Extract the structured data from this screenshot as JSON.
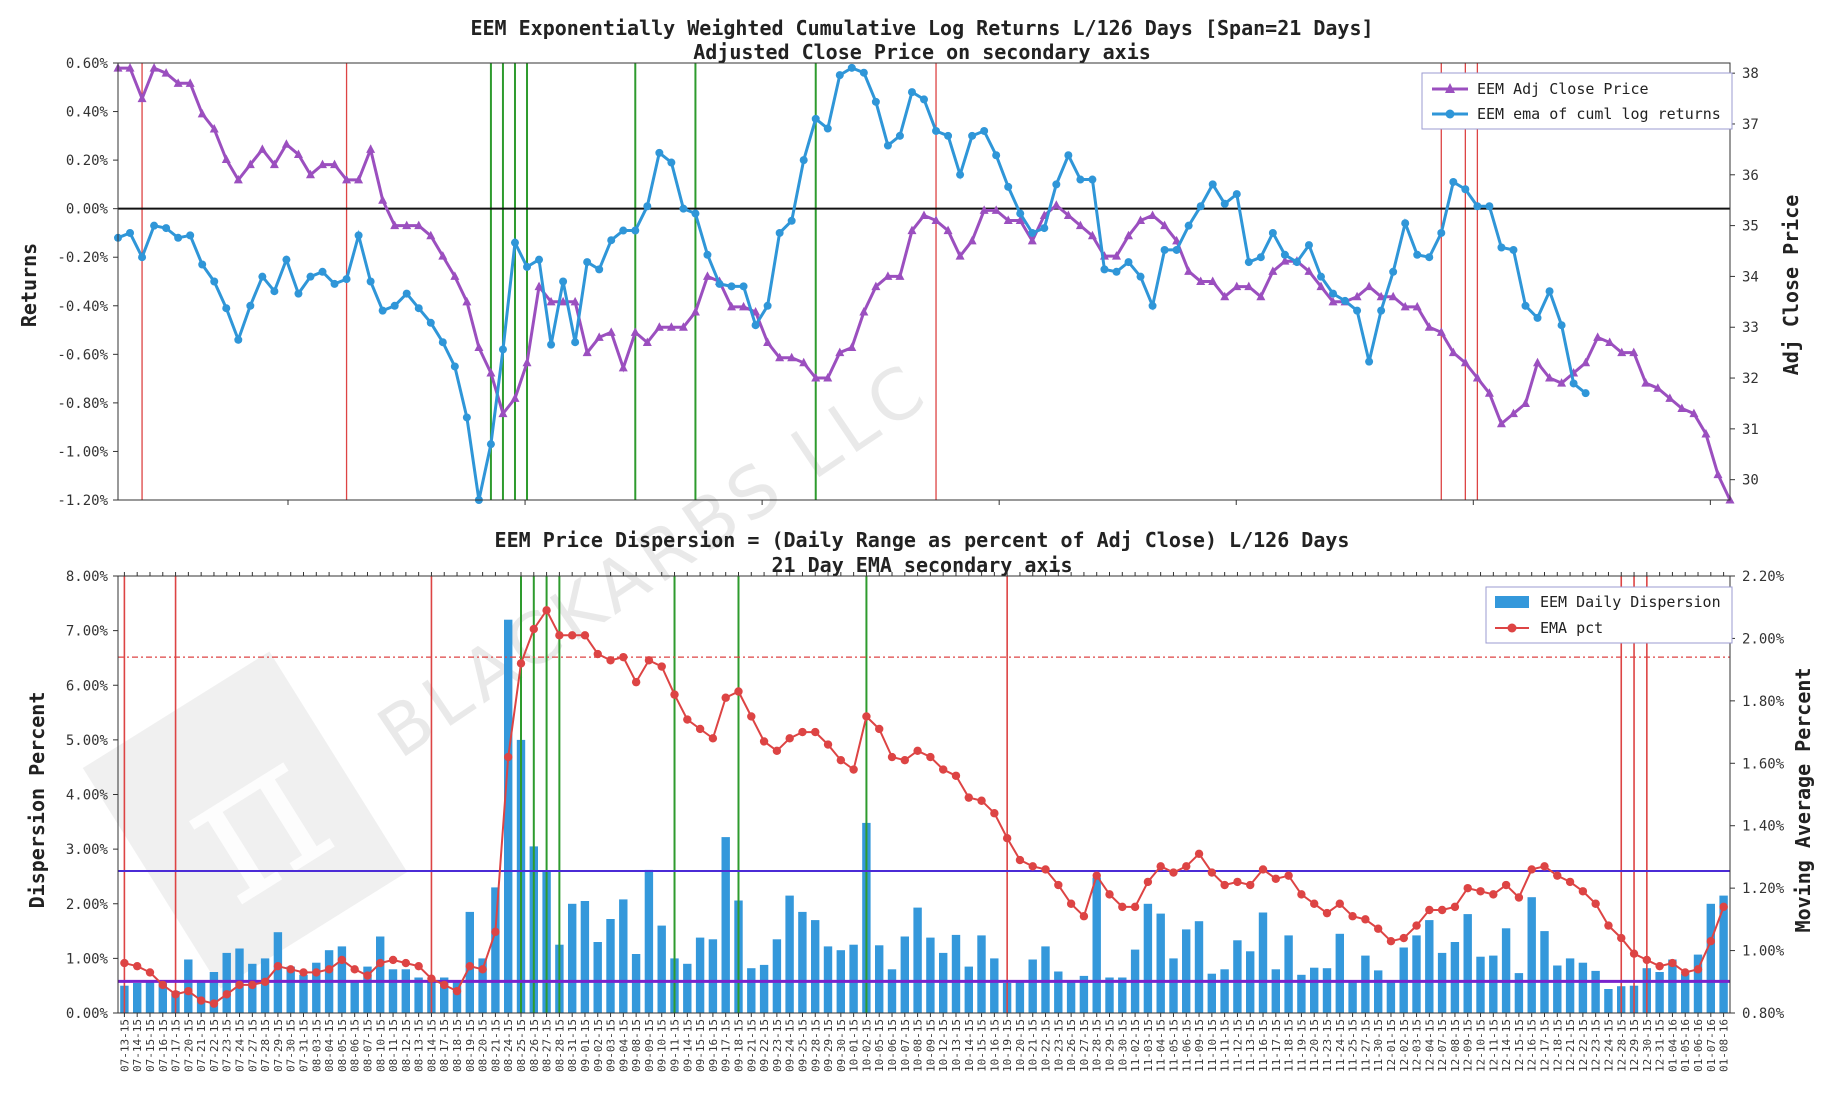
{
  "colors": {
    "purple": "#9b4fbf",
    "blue": "#2f96d8",
    "red": "#dd4444",
    "green": "#2e9b2e",
    "bar": "#3498db",
    "indigo": "#4b2bd6"
  },
  "watermark": {
    "text": "BLACKARBS LLC"
  },
  "chart_data": [
    {
      "type": "line",
      "title": "EEM Exponentially Weighted Cumulative Log Returns L/126 Days [Span=21 Days]",
      "subtitle": "Adjusted Close Price on secondary axis",
      "ylabel": "Returns",
      "y2label": "Adj Close Price",
      "ylim": [
        -1.2,
        0.6
      ],
      "y2lim": [
        29.6,
        38.2
      ],
      "yticks": [
        "0.60%",
        "0.40%",
        "0.20%",
        "0.00%",
        "-0.20%",
        "-0.40%",
        "-0.60%",
        "-0.80%",
        "-1.00%",
        "-1.20%"
      ],
      "y2ticks": [
        "38",
        "37",
        "36",
        "35",
        "34",
        "33",
        "32",
        "31",
        "30"
      ],
      "series": [
        {
          "name": "EEM Adj Close Price",
          "axis": "right",
          "marker": "triangle",
          "values": [
            38.1,
            38.1,
            37.5,
            38.1,
            38.0,
            37.8,
            37.8,
            37.2,
            36.9,
            36.3,
            35.9,
            36.2,
            36.5,
            36.2,
            36.6,
            36.4,
            36.0,
            36.2,
            36.2,
            35.9,
            35.9,
            36.5,
            35.5,
            35.0,
            35.0,
            35.0,
            34.8,
            34.4,
            34.0,
            33.5,
            32.6,
            32.1,
            31.3,
            31.6,
            32.3,
            33.8,
            33.5,
            33.5,
            33.5,
            32.5,
            32.8,
            32.9,
            32.2,
            32.9,
            32.7,
            33.0,
            33.0,
            33.0,
            33.3,
            34.0,
            33.9,
            33.4,
            33.4,
            33.3,
            32.7,
            32.4,
            32.4,
            32.3,
            32.0,
            32.0,
            32.5,
            32.6,
            33.3,
            33.8,
            34.0,
            34.0,
            34.9,
            35.2,
            35.1,
            34.9,
            34.4,
            34.7,
            35.3,
            35.3,
            35.1,
            35.1,
            34.7,
            35.2,
            35.4,
            35.2,
            35.0,
            34.8,
            34.4,
            34.4,
            34.8,
            35.1,
            35.2,
            35.0,
            34.7,
            34.1,
            33.9,
            33.9,
            33.6,
            33.8,
            33.8,
            33.6,
            34.1,
            34.3,
            34.3,
            34.1,
            33.8,
            33.5,
            33.5,
            33.6,
            33.8,
            33.6,
            33.6,
            33.4,
            33.4,
            33.0,
            32.9,
            32.5,
            32.3,
            32.0,
            31.7,
            31.1,
            31.3,
            31.5,
            32.3,
            32.0,
            31.9,
            32.1,
            32.3,
            32.8,
            32.7,
            32.5,
            32.5,
            31.9,
            31.8,
            31.6,
            31.4,
            31.3,
            30.9,
            30.1,
            29.6
          ]
        },
        {
          "name": "EEM ema of cuml log returns",
          "axis": "left",
          "marker": "circle",
          "values": [
            -0.12,
            -0.1,
            -0.2,
            -0.07,
            -0.08,
            -0.12,
            -0.11,
            -0.23,
            -0.3,
            -0.41,
            -0.54,
            -0.4,
            -0.28,
            -0.34,
            -0.21,
            -0.35,
            -0.28,
            -0.26,
            -0.31,
            -0.29,
            -0.11,
            -0.3,
            -0.42,
            -0.4,
            -0.35,
            -0.41,
            -0.47,
            -0.55,
            -0.65,
            -0.86,
            -1.2,
            -0.97,
            -0.58,
            -0.14,
            -0.24,
            -0.21,
            -0.56,
            -0.3,
            -0.55,
            -0.22,
            -0.25,
            -0.13,
            -0.09,
            -0.09,
            0.01,
            0.23,
            0.19,
            0.0,
            -0.02,
            -0.19,
            -0.31,
            -0.32,
            -0.32,
            -0.48,
            -0.4,
            -0.1,
            -0.05,
            0.2,
            0.37,
            0.33,
            0.55,
            0.58,
            0.56,
            0.44,
            0.26,
            0.3,
            0.48,
            0.45,
            0.32,
            0.3,
            0.14,
            0.3,
            0.32,
            0.22,
            0.09,
            -0.02,
            -0.1,
            -0.08,
            0.1,
            0.22,
            0.12,
            0.12,
            -0.25,
            -0.26,
            -0.22,
            -0.28,
            -0.4,
            -0.17,
            -0.17,
            -0.07,
            0.01,
            0.1,
            0.02,
            0.06,
            -0.22,
            -0.2,
            -0.1,
            -0.19,
            -0.22,
            -0.15,
            -0.28,
            -0.35,
            -0.38,
            -0.42,
            -0.63,
            -0.42,
            -0.26,
            -0.06,
            -0.19,
            -0.2,
            -0.1,
            0.11,
            0.08,
            0.01,
            0.01,
            -0.16,
            -0.17,
            -0.4,
            -0.45,
            -0.34,
            -0.48,
            -0.72,
            -0.76
          ]
        }
      ],
      "green_vlines": [
        31,
        32,
        33,
        34,
        43,
        48,
        58
      ],
      "red_vlines": [
        2,
        19,
        68,
        110,
        112,
        113
      ],
      "hline": 0.0
    },
    {
      "type": "bar",
      "title": "EEM Price Dispersion = (Daily Range as percent of Adj Close) L/126 Days",
      "subtitle": "21 Day EMA secondary axis",
      "ylabel": "Dispersion Percent",
      "y2label": "Moving Average Percent",
      "ylim": [
        0,
        8
      ],
      "y2lim": [
        0.8,
        2.2
      ],
      "yticks": [
        "8.00%",
        "7.00%",
        "6.00%",
        "5.00%",
        "4.00%",
        "3.00%",
        "2.00%",
        "1.00%",
        "0.00%"
      ],
      "y2ticks": [
        "2.20%",
        "2.00%",
        "1.80%",
        "1.60%",
        "1.40%",
        "1.20%",
        "1.00%",
        "0.80%"
      ],
      "categories": [
        "07-13-15",
        "07-14-15",
        "07-15-15",
        "07-16-15",
        "07-17-15",
        "07-20-15",
        "07-21-15",
        "07-22-15",
        "07-23-15",
        "07-24-15",
        "07-27-15",
        "07-28-15",
        "07-29-15",
        "07-30-15",
        "07-31-15",
        "08-03-15",
        "08-04-15",
        "08-05-15",
        "08-06-15",
        "08-07-15",
        "08-10-15",
        "08-11-15",
        "08-12-15",
        "08-13-15",
        "08-14-15",
        "08-17-15",
        "08-18-15",
        "08-19-15",
        "08-20-15",
        "08-21-15",
        "08-24-15",
        "08-25-15",
        "08-26-15",
        "08-27-15",
        "08-28-15",
        "08-31-15",
        "09-01-15",
        "09-02-15",
        "09-03-15",
        "09-04-15",
        "09-08-15",
        "09-09-15",
        "09-10-15",
        "09-11-15",
        "09-14-15",
        "09-15-15",
        "09-16-15",
        "09-17-15",
        "09-18-15",
        "09-21-15",
        "09-22-15",
        "09-23-15",
        "09-24-15",
        "09-25-15",
        "09-28-15",
        "09-29-15",
        "09-30-15",
        "10-01-15",
        "10-02-15",
        "10-05-15",
        "10-06-15",
        "10-07-15",
        "10-08-15",
        "10-09-15",
        "10-12-15",
        "10-13-15",
        "10-14-15",
        "10-15-15",
        "10-16-15",
        "10-19-15",
        "10-20-15",
        "10-21-15",
        "10-22-15",
        "10-23-15",
        "10-26-15",
        "10-27-15",
        "10-28-15",
        "10-29-15",
        "10-30-15",
        "11-02-15",
        "11-03-15",
        "11-04-15",
        "11-05-15",
        "11-06-15",
        "11-09-15",
        "11-10-15",
        "11-11-15",
        "11-12-15",
        "11-13-15",
        "11-16-15",
        "11-17-15",
        "11-18-15",
        "11-19-15",
        "11-20-15",
        "11-23-15",
        "11-24-15",
        "11-25-15",
        "11-27-15",
        "11-30-15",
        "12-01-15",
        "12-02-15",
        "12-03-15",
        "12-04-15",
        "12-07-15",
        "12-08-15",
        "12-09-15",
        "12-10-15",
        "12-11-15",
        "12-14-15",
        "12-15-15",
        "12-16-15",
        "12-17-15",
        "12-18-15",
        "12-21-15",
        "12-22-15",
        "12-23-15",
        "12-24-15",
        "12-28-15",
        "12-29-15",
        "12-30-15",
        "12-31-15",
        "01-04-16",
        "01-05-16",
        "01-06-16",
        "01-07-16",
        "01-08-16"
      ],
      "series": [
        {
          "name": "EEM Daily Dispersion",
          "axis": "left",
          "values": [
            0.5,
            0.55,
            0.6,
            0.55,
            0.4,
            0.98,
            0.6,
            0.75,
            1.1,
            1.18,
            0.9,
            1.0,
            1.48,
            0.85,
            0.7,
            0.92,
            1.15,
            1.22,
            0.6,
            0.85,
            1.4,
            0.8,
            0.8,
            0.65,
            0.6,
            0.65,
            0.6,
            1.85,
            1.0,
            2.3,
            7.2,
            5.0,
            3.05,
            2.6,
            1.25,
            2.0,
            2.05,
            1.3,
            1.72,
            2.08,
            1.08,
            2.62,
            1.6,
            1.0,
            0.9,
            1.38,
            1.35,
            3.22,
            2.06,
            0.82,
            0.88,
            1.35,
            2.15,
            1.85,
            1.7,
            1.22,
            1.15,
            1.25,
            3.48,
            1.24,
            0.8,
            1.4,
            1.93,
            1.38,
            1.1,
            1.43,
            0.85,
            1.42,
            1.0,
            0.55,
            0.6,
            0.98,
            1.22,
            0.76,
            0.58,
            0.68,
            2.48,
            0.65,
            0.65,
            1.16,
            2.0,
            1.82,
            1.0,
            1.53,
            1.68,
            0.72,
            0.8,
            1.33,
            1.13,
            1.84,
            0.8,
            1.42,
            0.7,
            0.83,
            0.82,
            1.45,
            0.6,
            1.05,
            0.78,
            0.6,
            1.2,
            1.42,
            1.7,
            1.1,
            1.3,
            1.81,
            1.03,
            1.05,
            1.55,
            0.73,
            2.12,
            1.5,
            0.87,
            1.0,
            0.92,
            0.77,
            0.44,
            0.49,
            0.5,
            0.82,
            0.75,
            0.98,
            0.72,
            1.07,
            2.0,
            2.15
          ]
        },
        {
          "name": "EMA pct",
          "axis": "right",
          "values": [
            0.96,
            0.95,
            0.93,
            0.89,
            0.86,
            0.87,
            0.84,
            0.83,
            0.86,
            0.89,
            0.89,
            0.9,
            0.95,
            0.94,
            0.93,
            0.93,
            0.94,
            0.97,
            0.94,
            0.92,
            0.96,
            0.97,
            0.96,
            0.95,
            0.91,
            0.89,
            0.87,
            0.95,
            0.94,
            1.06,
            1.62,
            1.92,
            2.03,
            2.09,
            2.01,
            2.01,
            2.01,
            1.95,
            1.93,
            1.94,
            1.86,
            1.93,
            1.91,
            1.82,
            1.74,
            1.71,
            1.68,
            1.81,
            1.83,
            1.75,
            1.67,
            1.64,
            1.68,
            1.7,
            1.7,
            1.66,
            1.61,
            1.58,
            1.75,
            1.71,
            1.62,
            1.61,
            1.64,
            1.62,
            1.58,
            1.56,
            1.49,
            1.48,
            1.44,
            1.36,
            1.29,
            1.27,
            1.26,
            1.21,
            1.15,
            1.11,
            1.24,
            1.18,
            1.14,
            1.14,
            1.22,
            1.27,
            1.25,
            1.27,
            1.31,
            1.25,
            1.21,
            1.22,
            1.21,
            1.26,
            1.23,
            1.24,
            1.18,
            1.15,
            1.12,
            1.15,
            1.11,
            1.1,
            1.07,
            1.03,
            1.04,
            1.08,
            1.13,
            1.13,
            1.14,
            1.2,
            1.19,
            1.18,
            1.21,
            1.17,
            1.26,
            1.27,
            1.24,
            1.22,
            1.19,
            1.15,
            1.08,
            1.04,
            0.99,
            0.97,
            0.95,
            0.96,
            0.93,
            0.94,
            1.03,
            1.14
          ]
        }
      ],
      "green_vlines": [
        31,
        32,
        33,
        34,
        43,
        48,
        58
      ],
      "red_vlines": [
        0,
        4,
        24,
        69,
        117,
        118,
        119
      ],
      "hline_purple": 2.6,
      "hline_indigo": 0.58,
      "hline_red_dashdot": 1.94
    }
  ]
}
